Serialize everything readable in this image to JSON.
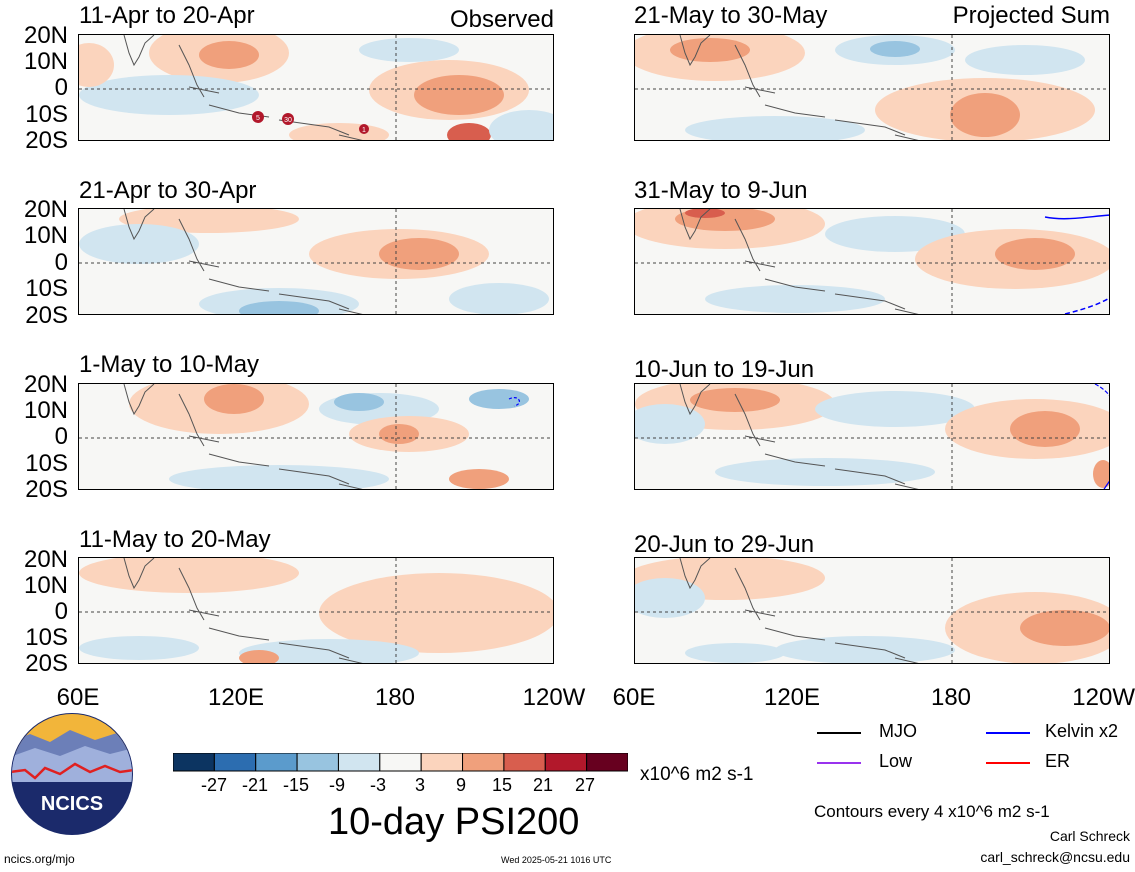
{
  "panels": [
    {
      "title": "11-Apr to 20-Apr",
      "tag": "Observed"
    },
    {
      "title": "21-May to 30-May",
      "tag": "Projected Sum"
    },
    {
      "title": "21-Apr to 30-Apr",
      "tag": ""
    },
    {
      "title": "31-May to 9-Jun",
      "tag": ""
    },
    {
      "title": "1-May to 10-May",
      "tag": ""
    },
    {
      "title": "10-Jun to 19-Jun",
      "tag": ""
    },
    {
      "title": "11-May to 20-May",
      "tag": ""
    },
    {
      "title": "20-Jun to 29-Jun",
      "tag": ""
    }
  ],
  "lat_labels": [
    "20N",
    "10N",
    "0",
    "10S",
    "20S"
  ],
  "lon_labels": [
    "60E",
    "120E",
    "180",
    "120W"
  ],
  "storm_markers": [
    "5",
    "30",
    "1"
  ],
  "colorbar": {
    "labels": [
      "-27",
      "-21",
      "-15",
      "-9",
      "-3",
      "3",
      "9",
      "15",
      "21",
      "27"
    ],
    "colors": [
      "#0c3461",
      "#2c6db0",
      "#5b9bcc",
      "#98c4e0",
      "#d1e5f0",
      "#f7f7f5",
      "#fbd4bd",
      "#f0a07c",
      "#d85e4e",
      "#b2182b",
      "#67001f"
    ],
    "units": "x10^6 m2 s-1"
  },
  "main_title": "10-day PSI200",
  "logo_text": "NCICS",
  "legend": [
    {
      "label": "MJO",
      "color": "#000000"
    },
    {
      "label": "Kelvin x2",
      "color": "#0000ff"
    },
    {
      "label": "Low",
      "color": "#9933ee"
    },
    {
      "label": "ER",
      "color": "#ff0000"
    }
  ],
  "contours_note": "Contours every 4 x10^6 m2 s-1",
  "author": "Carl Schreck",
  "email": "carl_schreck@ncsu.edu",
  "site": "ncics.org/mjo",
  "timestamp": "Wed 2025-05-21 1016 UTC"
}
